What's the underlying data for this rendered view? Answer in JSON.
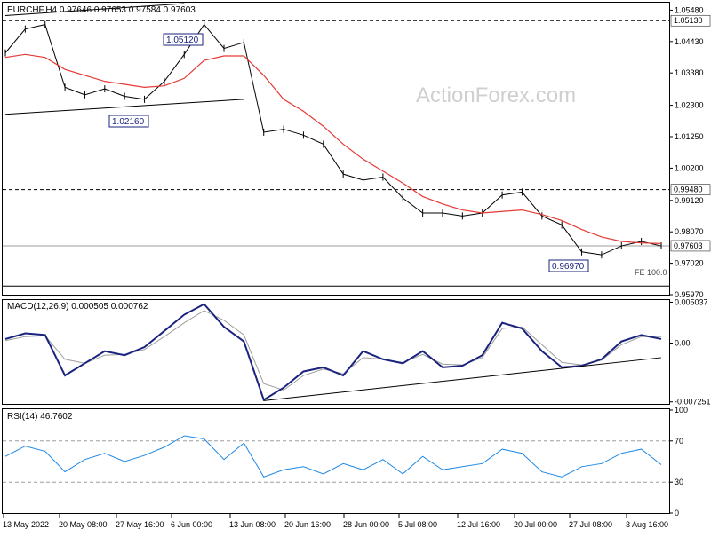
{
  "header": {
    "symbol": "EURCHF,H4",
    "ohlc": "0.97646 0.97653 0.97584 0.97603",
    "watermark": "ActionForex.com"
  },
  "annotations": {
    "high_label": "1.05120",
    "low_label_1": "1.02160",
    "low_label_2": "0.96970",
    "fe_label": "FE 100.0"
  },
  "price_axis": {
    "ticks": [
      "1.05480",
      "1.04430",
      "1.03380",
      "1.02300",
      "1.01250",
      "1.00200",
      "0.99120",
      "0.98070",
      "0.97020",
      "0.95970"
    ],
    "current_price_label": "0.97603",
    "level_labels": [
      "1.05130",
      "0.99480"
    ]
  },
  "macd": {
    "label": "MACD(12,26,9) 0.000505 0.000762",
    "ticks": [
      "0.005037",
      "0.00",
      "-0.007251"
    ]
  },
  "rsi": {
    "label": "RSI(14) 46.7602",
    "ticks": [
      "100",
      "70",
      "30",
      "0"
    ]
  },
  "x_axis": {
    "labels": [
      "13 May 2022",
      "20 May 08:00",
      "27 May 16:00",
      "6 Jun 00:00",
      "13 Jun 08:00",
      "20 Jun 16:00",
      "28 Jun 00:00",
      "5 Jul 08:00",
      "12 Jul 16:00",
      "20 Jul 00:00",
      "27 Jul 08:00",
      "3 Aug 16:00"
    ]
  },
  "chart_data": {
    "type": "line",
    "symbol": "EURCHF",
    "timeframe": "H4",
    "price": {
      "x": [
        "13 May",
        "16 May",
        "18 May",
        "20 May",
        "23 May",
        "25 May",
        "27 May",
        "31 May",
        "2 Jun",
        "6 Jun",
        "7 Jun",
        "9 Jun",
        "13 Jun",
        "14 Jun",
        "16 Jun",
        "20 Jun",
        "23 Jun",
        "27 Jun",
        "29 Jun",
        "1 Jul",
        "5 Jul",
        "7 Jul",
        "11 Jul",
        "13 Jul",
        "15 Jul",
        "19 Jul",
        "20 Jul",
        "22 Jul",
        "26 Jul",
        "27 Jul",
        "29 Jul",
        "2 Aug",
        "3 Aug",
        "5 Aug"
      ],
      "close": [
        1.0405,
        1.0485,
        1.05,
        1.029,
        1.0265,
        1.0285,
        1.026,
        1.025,
        1.031,
        1.04,
        1.05,
        1.042,
        1.044,
        1.014,
        1.015,
        1.013,
        1.01,
        1.0,
        0.998,
        0.999,
        0.992,
        0.987,
        0.987,
        0.986,
        0.987,
        0.993,
        0.994,
        0.986,
        0.983,
        0.974,
        0.973,
        0.976,
        0.9775,
        0.976
      ],
      "sma": [
        1.039,
        1.04,
        1.039,
        1.035,
        1.033,
        1.031,
        1.03,
        1.029,
        1.0295,
        1.032,
        1.038,
        1.0395,
        1.0395,
        1.033,
        1.025,
        1.021,
        1.016,
        1.01,
        1.005,
        1.001,
        0.997,
        0.9925,
        0.99,
        0.988,
        0.987,
        0.9875,
        0.988,
        0.9865,
        0.9845,
        0.9815,
        0.979,
        0.9775,
        0.977,
        0.9768
      ]
    },
    "trendlines": {
      "upper": {
        "x": [
          "13 May",
          "6 Jun"
        ],
        "y": [
          1.053,
          1.057
        ]
      },
      "lower": {
        "x": [
          "13 May",
          "13 Jun"
        ],
        "y": [
          1.02,
          1.025
        ]
      },
      "macd_support": {
        "x": [
          "14 Jun",
          "5 Aug"
        ],
        "y": [
          -0.0071,
          -0.0018
        ]
      }
    },
    "levels": [
      1.0513,
      0.9948,
      0.97603,
      0.9626
    ],
    "macd": {
      "main": [
        0.0005,
        0.0012,
        0.001,
        -0.004,
        -0.0025,
        -0.001,
        -0.0015,
        -0.0005,
        0.0015,
        0.0035,
        0.0048,
        0.002,
        0.0002,
        -0.007,
        -0.0055,
        -0.0035,
        -0.003,
        -0.004,
        -0.001,
        -0.002,
        -0.0025,
        -0.001,
        -0.003,
        -0.0028,
        -0.0015,
        0.0025,
        0.0018,
        -0.001,
        -0.003,
        -0.0028,
        -0.002,
        0.0002,
        0.001,
        0.0005
      ],
      "signal": [
        0.0003,
        0.0008,
        0.0009,
        -0.002,
        -0.0025,
        -0.0015,
        -0.0014,
        -0.0008,
        0.0008,
        0.0025,
        0.004,
        0.0028,
        0.001,
        -0.005,
        -0.0058,
        -0.004,
        -0.0032,
        -0.0038,
        -0.0018,
        -0.002,
        -0.0024,
        -0.0014,
        -0.0026,
        -0.0027,
        -0.0018,
        0.0018,
        0.002,
        -0.0002,
        -0.0024,
        -0.0027,
        -0.0021,
        -0.0002,
        0.0008,
        0.0008
      ]
    },
    "rsi": [
      55,
      65,
      60,
      40,
      52,
      58,
      50,
      56,
      64,
      75,
      72,
      52,
      68,
      35,
      42,
      45,
      38,
      48,
      42,
      52,
      38,
      55,
      42,
      45,
      48,
      62,
      58,
      40,
      35,
      45,
      48,
      58,
      62,
      47
    ],
    "ylim": [
      0.9597,
      1.057
    ],
    "macd_ylim": [
      -0.0075,
      0.0052
    ],
    "rsi_ylim": [
      0,
      100
    ],
    "rsi_levels": [
      70,
      30
    ]
  }
}
